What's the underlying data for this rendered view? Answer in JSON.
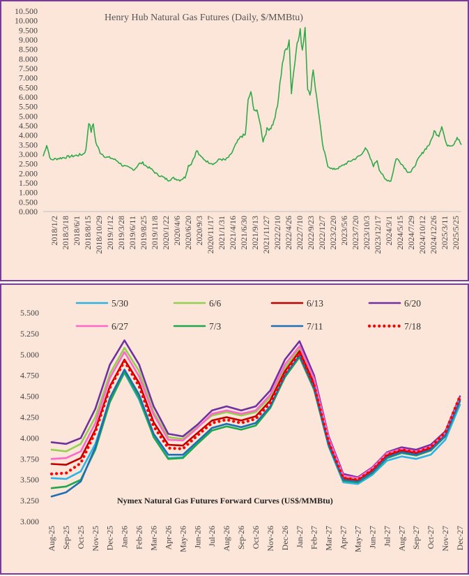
{
  "chart_data": [
    {
      "type": "line",
      "title": "Henry Hub Natural Gas Futures (Daily, $/MMBtu)",
      "ylim": [
        0,
        10.5
      ],
      "ytick_labels": [
        "0.000",
        "0.500",
        "1.000",
        "1.500",
        "2.000",
        "2.500",
        "3.000",
        "3.500",
        "4.000",
        "4.500",
        "5.000",
        "5.500",
        "6.000",
        "6.500",
        "7.000",
        "7.500",
        "8.000",
        "8.500",
        "9.000",
        "9.500",
        "10.000",
        "10.500"
      ],
      "x_tick_labels": [
        "2018/1/2",
        "2018/3/18",
        "2018/6/1",
        "2018/8/15",
        "2018/10/29",
        "2019/1/12",
        "2019/3/28",
        "2019/6/11",
        "2019/8/25",
        "2019/11/8",
        "2020/1/22",
        "2020/4/6",
        "2020/6/20",
        "2020/9/3",
        "2020/11/17",
        "2021/1/31",
        "2021/4/16",
        "2021/6/30",
        "2021/9/13",
        "2021/11/27",
        "2022/2/10",
        "2022/4/26",
        "2022/7/10",
        "2022/9/23",
        "2022/12/7",
        "2023/2/20",
        "2023/5/6",
        "2023/7/20",
        "2023/10/3",
        "2023/12/17",
        "2024/3/1",
        "2024/5/15",
        "2024/7/29",
        "2024/10/12",
        "2024/12/26",
        "2025/3/11",
        "2025/5/25"
      ],
      "color": "#2eaa4a",
      "grid": false,
      "series": [
        {
          "x": [
            "2018/1/2",
            "2018/1/25",
            "2018/2/20",
            "2018/3/18",
            "2018/4/25",
            "2018/6/1",
            "2018/7/10",
            "2018/8/15",
            "2018/9/20",
            "2018/10/10",
            "2018/10/29",
            "2018/11/14",
            "2018/11/28",
            "2018/12/15",
            "2019/1/12",
            "2019/2/20",
            "2019/3/28",
            "2019/5/5",
            "2019/6/11",
            "2019/7/20",
            "2019/8/25",
            "2019/9/25",
            "2019/10/20",
            "2019/11/8",
            "2019/12/10",
            "2020/1/22",
            "2020/2/20",
            "2020/3/10",
            "2020/4/6",
            "2020/5/10",
            "2020/6/20",
            "2020/7/25",
            "2020/8/15",
            "2020/9/3",
            "2020/10/10",
            "2020/10/30",
            "2020/11/17",
            "2020/12/20",
            "2021/1/31",
            "2021/3/10",
            "2021/4/16",
            "2021/5/20",
            "2021/6/30",
            "2021/7/30",
            "2021/8/25",
            "2021/9/13",
            "2021/10/1",
            "2021/10/15",
            "2021/11/10",
            "2021/11/27",
            "2021/12/20",
            "2022/1/15",
            "2022/2/10",
            "2022/3/1",
            "2022/3/25",
            "2022/4/26",
            "2022/5/20",
            "2022/6/10",
            "2022/6/25",
            "2022/7/10",
            "2022/7/25",
            "2022/8/22",
            "2022/9/5",
            "2022/9/23",
            "2022/10/10",
            "2022/10/25",
            "2022/11/15",
            "2022/12/7",
            "2022/12/25",
            "2023/1/15",
            "2023/2/20",
            "2023/3/25",
            "2023/5/6",
            "2023/6/15",
            "2023/7/20",
            "2023/8/25",
            "2023/10/3",
            "2023/10/25",
            "2023/11/20",
            "2023/12/17",
            "2024/1/10",
            "2024/1/25",
            "2024/3/1",
            "2024/4/10",
            "2024/5/15",
            "2024/6/10",
            "2024/7/29",
            "2024/8/20",
            "2024/10/12",
            "2024/11/15",
            "2024/12/26",
            "2025/1/20",
            "2025/2/20",
            "2025/3/11",
            "2025/4/10",
            "2025/5/25",
            "2025/6/20",
            "2025/7/18"
          ],
          "y": [
            2.9,
            3.5,
            2.7,
            2.75,
            2.8,
            2.85,
            2.9,
            2.95,
            3.0,
            3.2,
            4.7,
            4.2,
            4.6,
            3.6,
            3.1,
            2.85,
            2.8,
            2.65,
            2.4,
            2.3,
            2.2,
            2.5,
            2.55,
            2.4,
            2.25,
            1.95,
            1.85,
            1.75,
            1.65,
            1.75,
            1.65,
            1.8,
            2.4,
            2.5,
            3.2,
            2.9,
            2.8,
            2.6,
            2.5,
            2.75,
            2.7,
            2.95,
            3.6,
            3.95,
            4.0,
            5.8,
            6.3,
            5.5,
            5.2,
            4.8,
            3.7,
            4.3,
            4.4,
            4.7,
            5.5,
            7.8,
            8.5,
            9.0,
            6.2,
            7.4,
            8.5,
            9.4,
            8.5,
            9.7,
            6.5,
            6.0,
            7.5,
            6.0,
            5.0,
            3.5,
            2.4,
            2.2,
            2.3,
            2.5,
            2.65,
            2.8,
            3.0,
            3.4,
            2.9,
            2.4,
            2.7,
            2.2,
            1.7,
            1.6,
            2.8,
            2.6,
            2.1,
            2.05,
            2.8,
            3.2,
            3.6,
            4.2,
            4.0,
            4.5,
            3.5,
            3.5,
            3.9,
            3.5
          ]
        }
      ]
    },
    {
      "type": "line",
      "title": "Nymex Natural Gas Futures Forward Curves (US$/MMBtu)",
      "ylim": [
        3.0,
        5.5
      ],
      "ytick_labels": [
        "3.000",
        "3.250",
        "3.500",
        "3.750",
        "4.000",
        "4.250",
        "4.500",
        "4.750",
        "5.000",
        "5.250",
        "5.500"
      ],
      "categories": [
        "Aug-25",
        "Sep-25",
        "Oct-25",
        "Nov-25",
        "Dec-25",
        "Jan-26",
        "Feb-26",
        "Mar-26",
        "Apr-26",
        "May-26",
        "Jun-26",
        "Jul-26",
        "Aug-26",
        "Sep-26",
        "Oct-26",
        "Nov-26",
        "Dec-26",
        "Jan-27",
        "Feb-27",
        "Mar-27",
        "Apr-27",
        "May-27",
        "Jun-27",
        "Jul-27",
        "Aug-27",
        "Sep-27",
        "Oct-27",
        "Nov-27",
        "Dec-27"
      ],
      "legend_position": "top",
      "grid": false,
      "series": [
        {
          "name": "5/30",
          "color": "#2bb3e6",
          "dashed": false,
          "values": [
            3.52,
            3.51,
            3.6,
            3.93,
            4.46,
            4.78,
            4.46,
            4.02,
            3.76,
            3.77,
            3.95,
            4.12,
            4.17,
            4.13,
            4.18,
            4.37,
            4.73,
            4.97,
            4.58,
            3.9,
            3.47,
            3.45,
            3.56,
            3.73,
            3.78,
            3.75,
            3.8,
            3.98,
            4.4
          ]
        },
        {
          "name": "6/6",
          "color": "#92d050",
          "dashed": false,
          "values": [
            3.86,
            3.84,
            3.93,
            4.25,
            4.77,
            5.08,
            4.8,
            4.31,
            4.01,
            3.99,
            4.13,
            4.27,
            4.31,
            4.27,
            4.31,
            4.49,
            4.84,
            5.07,
            4.67,
            3.97,
            3.53,
            3.5,
            3.63,
            3.8,
            3.86,
            3.83,
            3.89,
            4.06,
            4.47
          ]
        },
        {
          "name": "6/13",
          "color": "#c00000",
          "dashed": false,
          "values": [
            3.69,
            3.68,
            3.76,
            4.1,
            4.62,
            4.94,
            4.66,
            4.19,
            3.92,
            3.91,
            4.06,
            4.21,
            4.25,
            4.21,
            4.26,
            4.45,
            4.8,
            5.04,
            4.65,
            3.95,
            3.52,
            3.49,
            3.61,
            3.79,
            3.85,
            3.82,
            3.88,
            4.04,
            4.46
          ]
        },
        {
          "name": "6/20",
          "color": "#7030a0",
          "dashed": false,
          "values": [
            3.95,
            3.93,
            4.0,
            4.35,
            4.88,
            5.17,
            4.88,
            4.38,
            4.05,
            4.02,
            4.16,
            4.33,
            4.38,
            4.33,
            4.38,
            4.57,
            4.94,
            5.16,
            4.75,
            4.02,
            3.57,
            3.53,
            3.65,
            3.83,
            3.89,
            3.86,
            3.92,
            4.08,
            4.5
          ]
        },
        {
          "name": "6/27",
          "color": "#ff66cc",
          "dashed": false,
          "values": [
            3.75,
            3.76,
            3.84,
            4.18,
            4.72,
            5.03,
            4.74,
            4.28,
            3.98,
            3.97,
            4.12,
            4.29,
            4.33,
            4.29,
            4.33,
            4.52,
            4.88,
            5.1,
            4.71,
            4.0,
            3.55,
            3.52,
            3.64,
            3.82,
            3.87,
            3.84,
            3.9,
            4.06,
            4.48
          ]
        },
        {
          "name": "7/3",
          "color": "#1fa84a",
          "dashed": false,
          "values": [
            3.4,
            3.42,
            3.5,
            3.86,
            4.43,
            4.79,
            4.48,
            4.01,
            3.75,
            3.76,
            3.93,
            4.09,
            4.14,
            4.1,
            4.15,
            4.36,
            4.73,
            4.97,
            4.58,
            3.91,
            3.49,
            3.47,
            3.58,
            3.76,
            3.82,
            3.79,
            3.85,
            4.02,
            4.44
          ]
        },
        {
          "name": "7/11",
          "color": "#1f6fb5",
          "dashed": false,
          "values": [
            3.3,
            3.35,
            3.48,
            3.89,
            4.48,
            4.82,
            4.52,
            4.05,
            3.8,
            3.8,
            3.96,
            4.12,
            4.17,
            4.13,
            4.18,
            4.38,
            4.75,
            4.99,
            4.6,
            3.92,
            3.5,
            3.48,
            3.59,
            3.77,
            3.83,
            3.8,
            3.86,
            4.03,
            4.45
          ]
        },
        {
          "name": "7/18",
          "color": "#ff0000",
          "dashed": true,
          "values": [
            3.57,
            3.58,
            3.7,
            4.07,
            4.6,
            4.92,
            4.62,
            4.14,
            3.88,
            3.87,
            4.03,
            4.18,
            4.22,
            4.18,
            4.23,
            4.42,
            4.78,
            5.02,
            4.63,
            3.95,
            3.52,
            3.5,
            3.62,
            3.8,
            3.86,
            3.83,
            3.89,
            4.07,
            4.5
          ]
        }
      ]
    }
  ]
}
